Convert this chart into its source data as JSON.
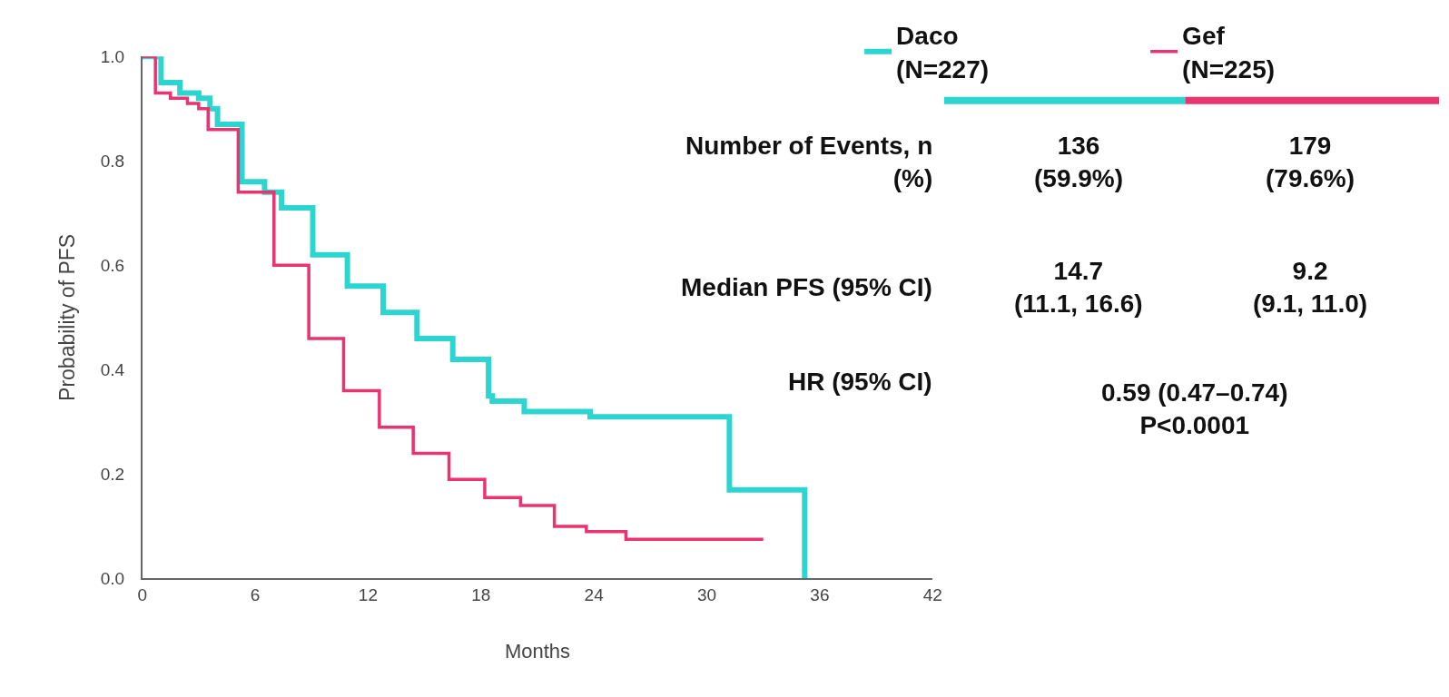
{
  "chart_data": {
    "type": "step",
    "xlabel": "Months",
    "ylabel": "Probability of PFS",
    "xlim": [
      0,
      42
    ],
    "xticks": [
      0,
      6,
      12,
      18,
      24,
      30,
      36,
      42
    ],
    "ylim": [
      0,
      1.0
    ],
    "yticks": [
      {
        "value": 0,
        "label": "0.0"
      },
      {
        "value": 0.2,
        "label": "0.2"
      },
      {
        "value": 0.4,
        "label": "0.4"
      },
      {
        "value": 0.6,
        "label": "0.6"
      },
      {
        "value": 0.8,
        "label": "0.8"
      },
      {
        "value": 1.0,
        "label": "1.0"
      }
    ],
    "legend": "top right",
    "marker": "none",
    "line_style": "solid",
    "series": [
      {
        "name": "Daco\n(N=227)",
        "color": "#2cd5d0",
        "x": [
          0,
          1,
          2,
          3,
          3.6,
          4,
          5.3,
          6.5,
          7.4,
          9.06,
          10.9,
          12.8,
          14.6,
          16.5,
          18.4,
          18.6,
          20.3,
          23.8,
          31.2,
          35.2,
          35.2
        ],
        "values": [
          1.0,
          0.95,
          0.93,
          0.92,
          0.9,
          0.87,
          0.76,
          0.74,
          0.71,
          0.62,
          0.56,
          0.51,
          0.46,
          0.42,
          0.35,
          0.34,
          0.32,
          0.31,
          0.17,
          0.17,
          0
        ]
      },
      {
        "name": "Gef\n(N=225)",
        "color": "#e8356f",
        "x": [
          0,
          0.7,
          1.5,
          2.4,
          3.0,
          3.5,
          5.1,
          7.0,
          8.85,
          10.7,
          12.6,
          14.4,
          16.3,
          18.2,
          20.1,
          21.9,
          23.6,
          25.7,
          33.0
        ],
        "values": [
          1.0,
          0.93,
          0.92,
          0.91,
          0.9,
          0.86,
          0.74,
          0.6,
          0.46,
          0.36,
          0.29,
          0.24,
          0.19,
          0.155,
          0.14,
          0.1,
          0.09,
          0.075,
          0.075
        ]
      }
    ],
    "annotations": [
      "Number of Events, n\n(%)",
      "136\n(59.9%)",
      "179\n(79.6%)",
      "Median PFS (95% CI)",
      "14.7\n(11.1, 16.6)",
      "9.2\n(9.1, 11.0)",
      "HR (95% CI)",
      "0.59 (0.47–0.74)\nP<0.0001"
    ]
  }
}
